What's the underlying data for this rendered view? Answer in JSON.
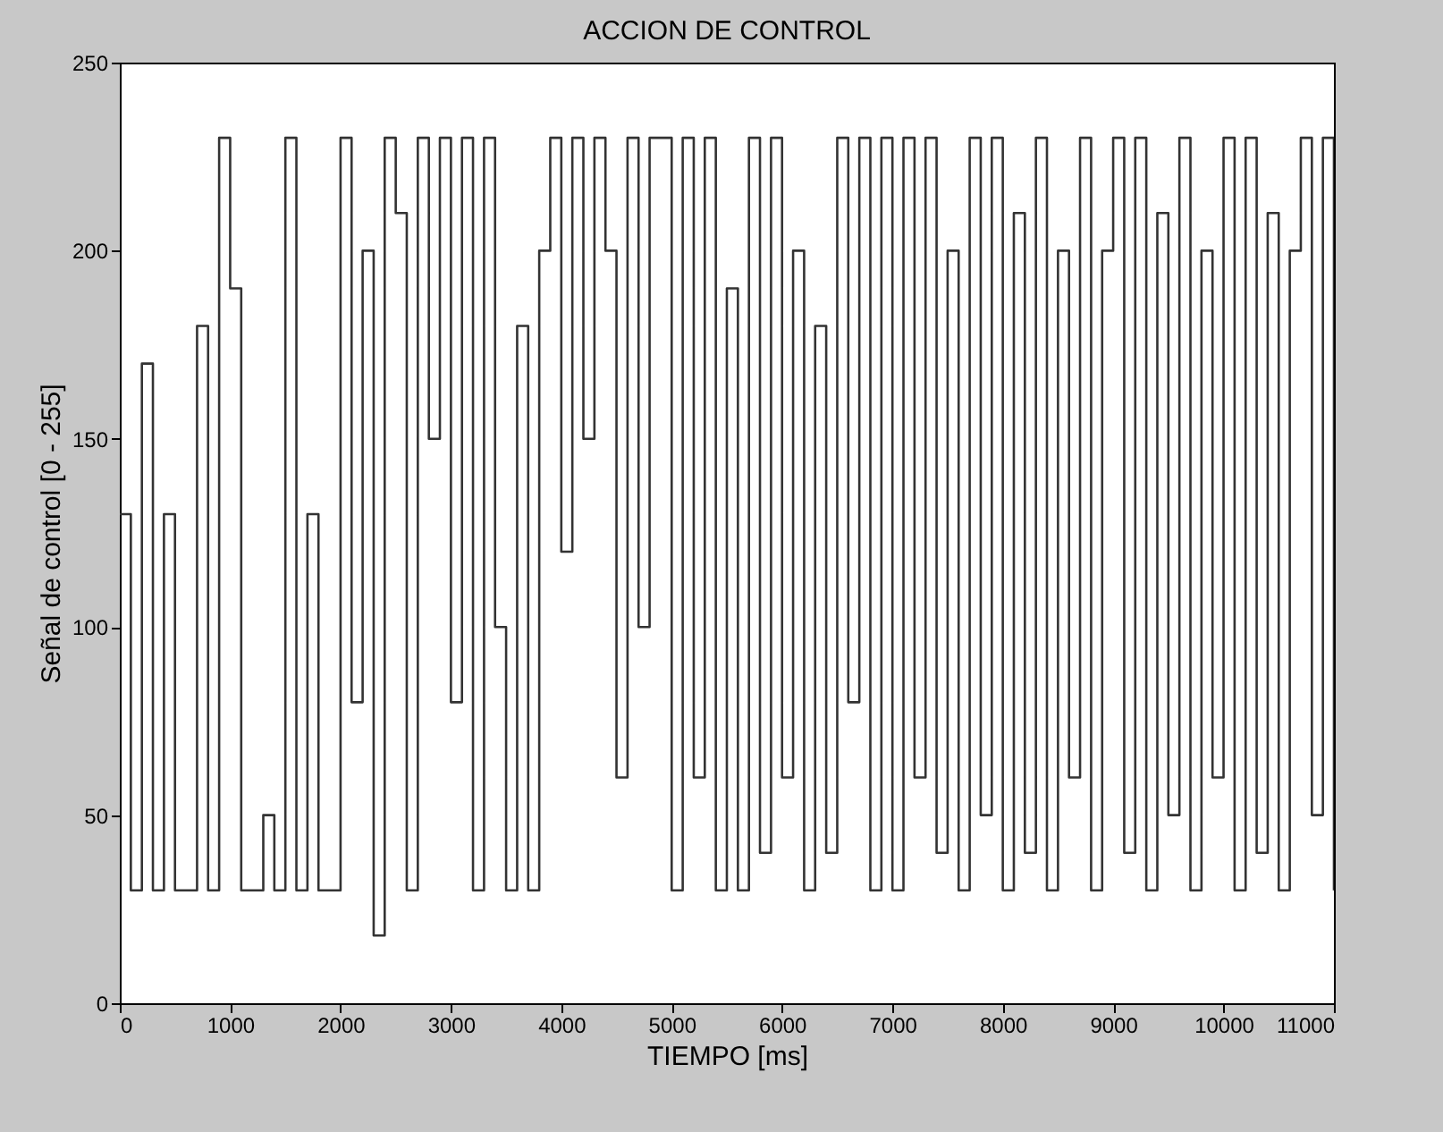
{
  "chart_data": {
    "type": "step",
    "title": "ACCION DE CONTROL",
    "xlabel": "TIEMPO [ms]",
    "ylabel": "Señal de control [0 - 255]",
    "x": [
      0,
      100,
      200,
      300,
      400,
      500,
      600,
      700,
      800,
      900,
      1000,
      1100,
      1200,
      1300,
      1400,
      1500,
      1600,
      1700,
      1800,
      1900,
      2000,
      2100,
      2200,
      2300,
      2400,
      2500,
      2600,
      2700,
      2800,
      2900,
      3000,
      3100,
      3200,
      3300,
      3400,
      3500,
      3600,
      3700,
      3800,
      3900,
      4000,
      4100,
      4200,
      4300,
      4400,
      4500,
      4600,
      4700,
      4800,
      4900,
      5000,
      5100,
      5200,
      5300,
      5400,
      5500,
      5600,
      5700,
      5800,
      5900,
      6000,
      6100,
      6200,
      6300,
      6400,
      6500,
      6600,
      6700,
      6800,
      6900,
      7000,
      7100,
      7200,
      7300,
      7400,
      7500,
      7600,
      7700,
      7800,
      7900,
      8000,
      8100,
      8200,
      8300,
      8400,
      8500,
      8600,
      8700,
      8800,
      8900,
      9000,
      9100,
      9200,
      9300,
      9400,
      9500,
      9600,
      9700,
      9800,
      9900,
      10000,
      10100,
      10200,
      10300,
      10400,
      10500,
      10600,
      10700,
      10800,
      10900,
      11000
    ],
    "series": [
      {
        "color": "#333333",
        "values": [
          130,
          30,
          170,
          30,
          130,
          30,
          30,
          180,
          30,
          230,
          190,
          30,
          30,
          50,
          30,
          230,
          30,
          130,
          30,
          30,
          230,
          80,
          200,
          18,
          230,
          210,
          30,
          230,
          150,
          230,
          80,
          230,
          30,
          230,
          100,
          30,
          180,
          30,
          200,
          230,
          120,
          230,
          150,
          230,
          200,
          60,
          230,
          100,
          230,
          230,
          30,
          230,
          60,
          230,
          30,
          190,
          30,
          230,
          40,
          230,
          60,
          200,
          30,
          180,
          40,
          230,
          80,
          230,
          30,
          230,
          30,
          230,
          60,
          230,
          40,
          200,
          30,
          230,
          50,
          230,
          30,
          210,
          40,
          230,
          30,
          200,
          60,
          230,
          30,
          200,
          230,
          40,
          230,
          30,
          210,
          50,
          230,
          30,
          200,
          60,
          230,
          30,
          230,
          40,
          210,
          30,
          200,
          230,
          50,
          230,
          30
        ]
      }
    ],
    "xlim": [
      0,
      11000
    ],
    "xticks": [
      0,
      1000,
      2000,
      3000,
      4000,
      5000,
      6000,
      7000,
      8000,
      9000,
      10000,
      11000
    ],
    "ylim": [
      0,
      250
    ],
    "yticks": [
      0,
      50,
      100,
      150,
      200,
      250
    ],
    "grid": false
  }
}
